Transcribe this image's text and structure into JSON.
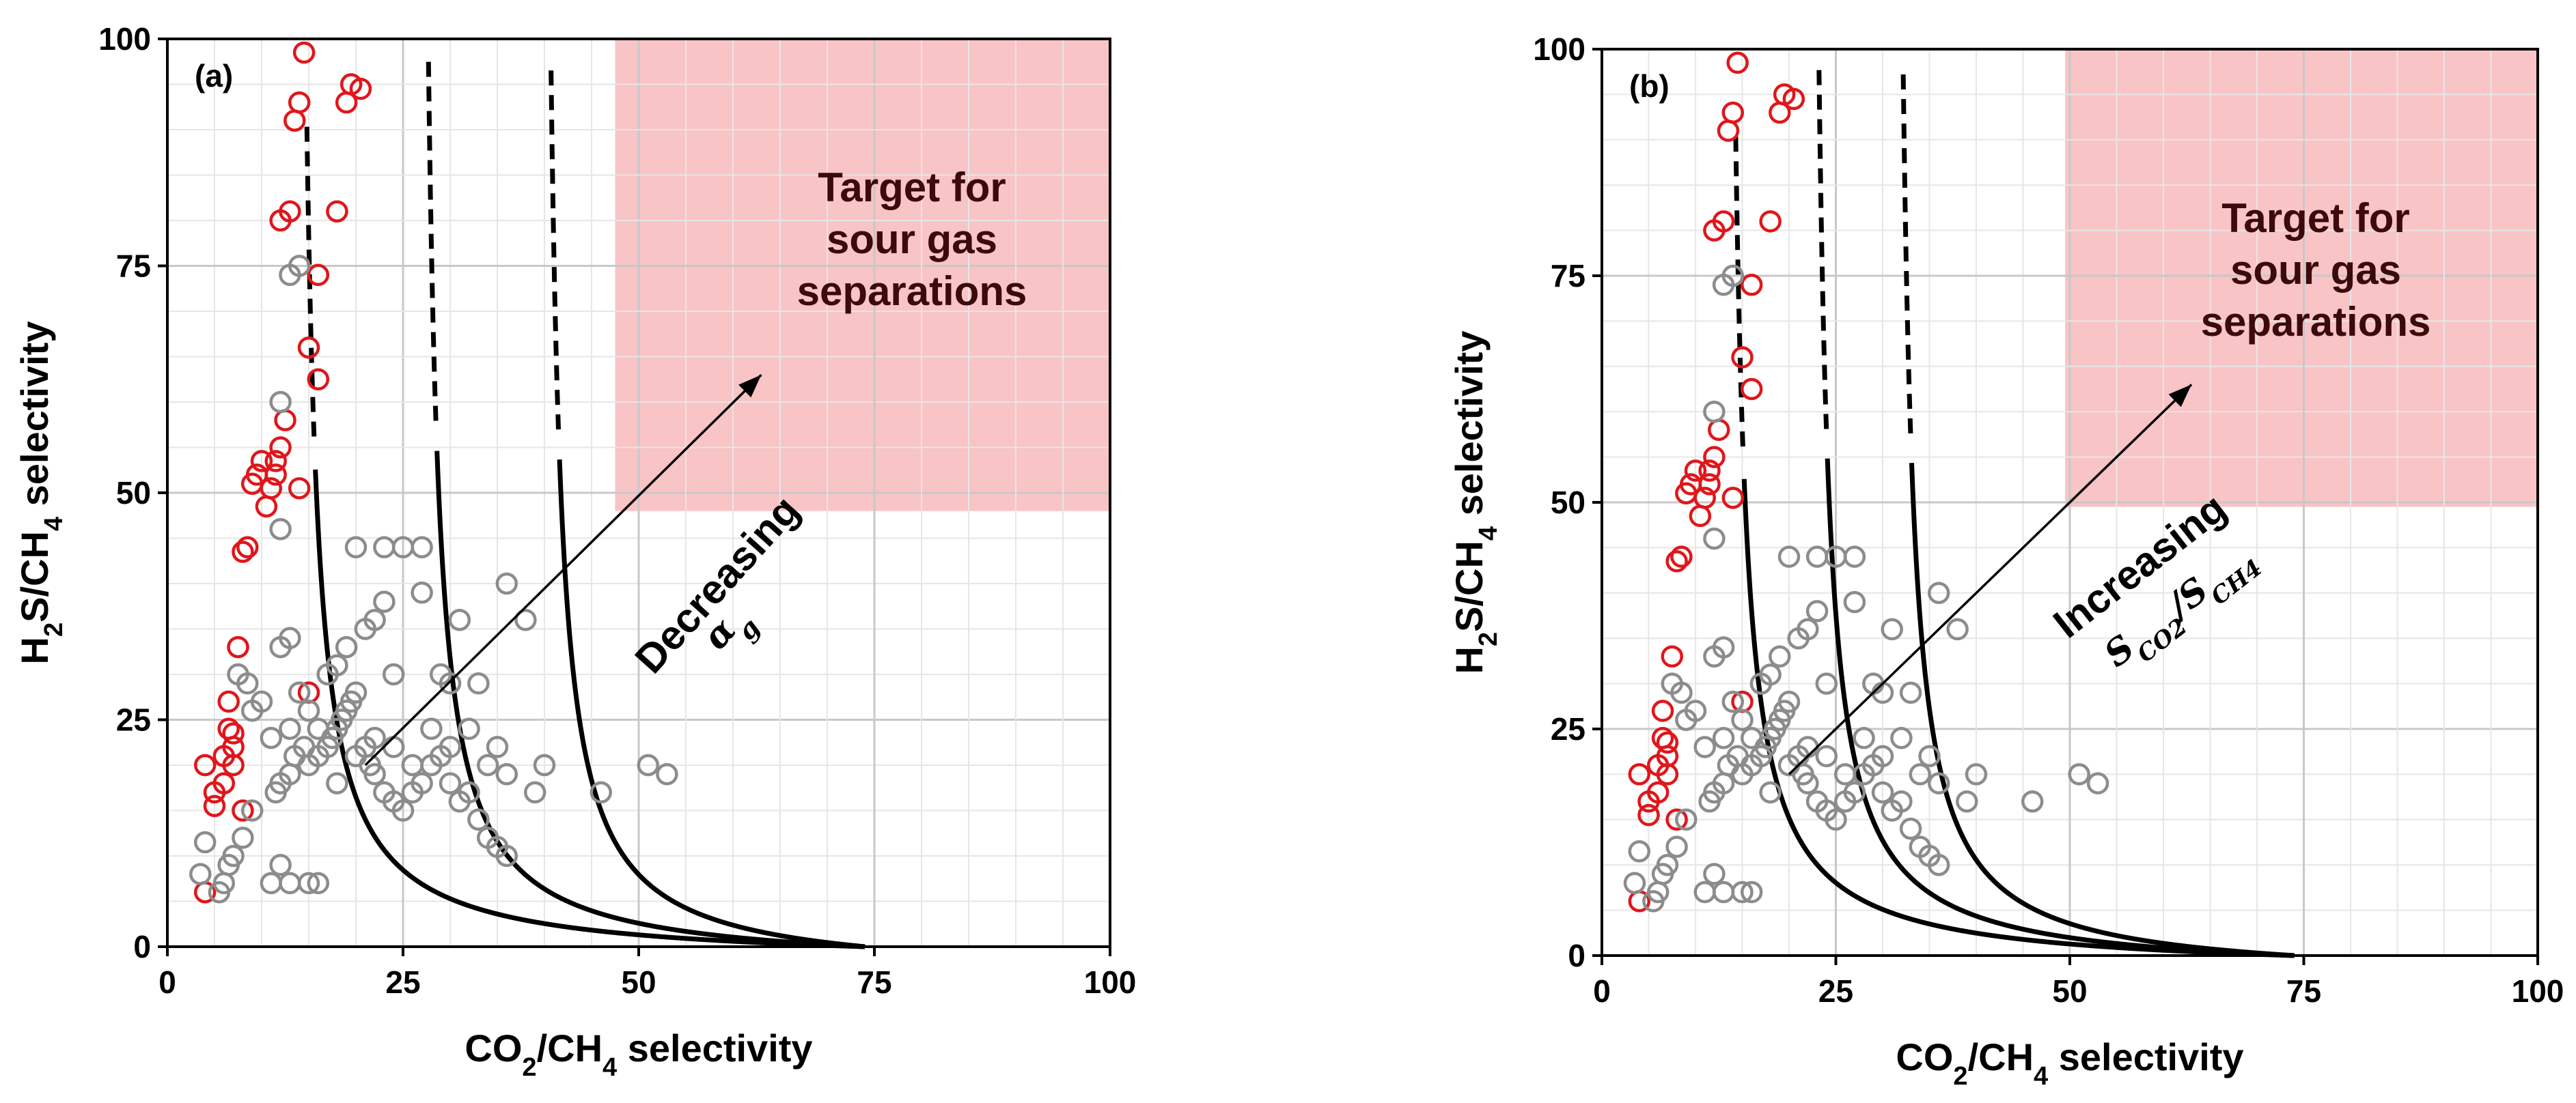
{
  "chart_data": [
    {
      "type": "scatter",
      "panel": "(a)",
      "xlabel": "CO2/CH4 selectivity",
      "ylabel": "H2S/CH4 selectivity",
      "xlim": [
        0,
        100
      ],
      "ylim": [
        0,
        100
      ],
      "xticks": [
        "0",
        "25",
        "50",
        "75",
        "100"
      ],
      "yticks": [
        "0",
        "25",
        "50",
        "75",
        "100"
      ],
      "grid": true,
      "target_region": {
        "label_lines": [
          "Target for",
          "sour gas",
          "separations"
        ],
        "x": [
          47.5,
          100
        ],
        "y": [
          48,
          100
        ],
        "color": "#f9c4c6"
      },
      "arrow_label_main": "Decreasing",
      "arrow_label_math": "αg",
      "arrow": {
        "from": [
          21,
          20
        ],
        "to": [
          63,
          63
        ]
      },
      "curves": [
        {
          "asymptote_x": 13.5,
          "solid_from_y": 55
        },
        {
          "asymptote_x": 26.5,
          "solid_from_y": 55
        },
        {
          "asymptote_x": 39.5,
          "solid_from_y": 55
        }
      ],
      "series": [
        {
          "color": "#e0161b",
          "points": [
            [
              4,
              6
            ],
            [
              4,
              20
            ],
            [
              5,
              15.5
            ],
            [
              5,
              17
            ],
            [
              6,
              18
            ],
            [
              6,
              21
            ],
            [
              7,
              20
            ],
            [
              7,
              22
            ],
            [
              7,
              23.5
            ],
            [
              6.5,
              24
            ],
            [
              6.5,
              27
            ],
            [
              8,
              15
            ],
            [
              7.5,
              33
            ],
            [
              8,
              43.5
            ],
            [
              8.5,
              44
            ],
            [
              9,
              51
            ],
            [
              9.5,
              52
            ],
            [
              10,
              53.5
            ],
            [
              10.5,
              48.5
            ],
            [
              11,
              50.5
            ],
            [
              11.5,
              52
            ],
            [
              11.5,
              53.5
            ],
            [
              12,
              55
            ],
            [
              12.5,
              58
            ],
            [
              14,
              50.5
            ],
            [
              12,
              80
            ],
            [
              13,
              81
            ],
            [
              13.5,
              91
            ],
            [
              14,
              93
            ],
            [
              14.5,
              98.5
            ],
            [
              15,
              66
            ],
            [
              16,
              62.5
            ],
            [
              16,
              74
            ],
            [
              18,
              81
            ],
            [
              19,
              93
            ],
            [
              19.5,
              95
            ],
            [
              20.5,
              94.5
            ],
            [
              15,
              28
            ]
          ]
        },
        {
          "color": "#8c8c8c",
          "points": [
            [
              3.5,
              8
            ],
            [
              4,
              11.5
            ],
            [
              5.5,
              6
            ],
            [
              6,
              7
            ],
            [
              6.5,
              9
            ],
            [
              7,
              10
            ],
            [
              8,
              12
            ],
            [
              9,
              15
            ],
            [
              9,
              26
            ],
            [
              10,
              27
            ],
            [
              7.5,
              30
            ],
            [
              8.5,
              29
            ],
            [
              11,
              23
            ],
            [
              11.5,
              17
            ],
            [
              12,
              18
            ],
            [
              13,
              19
            ],
            [
              13.5,
              21
            ],
            [
              14.5,
              22
            ],
            [
              15,
              20
            ],
            [
              16,
              21
            ],
            [
              17,
              22
            ],
            [
              17.5,
              23
            ],
            [
              18,
              24
            ],
            [
              18.5,
              25
            ],
            [
              19,
              26
            ],
            [
              19.5,
              27
            ],
            [
              20,
              28
            ],
            [
              21,
              22
            ],
            [
              21.5,
              20
            ],
            [
              22,
              19
            ],
            [
              23,
              17
            ],
            [
              24,
              16
            ],
            [
              25,
              15
            ],
            [
              26,
              17
            ],
            [
              27,
              18
            ],
            [
              28,
              20
            ],
            [
              29,
              21
            ],
            [
              30,
              22
            ],
            [
              31,
              16
            ],
            [
              32,
              17
            ],
            [
              33,
              14
            ],
            [
              34,
              12
            ],
            [
              35,
              11
            ],
            [
              36,
              10
            ],
            [
              11,
              7
            ],
            [
              12,
              9
            ],
            [
              13,
              7
            ],
            [
              15,
              7
            ],
            [
              16,
              7
            ],
            [
              12,
              60
            ],
            [
              12,
              46
            ],
            [
              14,
              75
            ],
            [
              13,
              74
            ],
            [
              17,
              30
            ],
            [
              18,
              31
            ],
            [
              19,
              33
            ],
            [
              21,
              35
            ],
            [
              22,
              36
            ],
            [
              23,
              38
            ],
            [
              24,
              30
            ],
            [
              25,
              44
            ],
            [
              27,
              39
            ],
            [
              29,
              30
            ],
            [
              30,
              29
            ],
            [
              31,
              36
            ],
            [
              33,
              29
            ],
            [
              36,
              40
            ],
            [
              38,
              36
            ],
            [
              39,
              17
            ],
            [
              40,
              20
            ],
            [
              46,
              17
            ],
            [
              51,
              20
            ],
            [
              53,
              19
            ],
            [
              20,
              44
            ],
            [
              23,
              44
            ],
            [
              27,
              44
            ],
            [
              30,
              18
            ],
            [
              32,
              24
            ],
            [
              34,
              20
            ],
            [
              35,
              22
            ],
            [
              36,
              19
            ],
            [
              18,
              18
            ],
            [
              20,
              21
            ],
            [
              22,
              23
            ],
            [
              24,
              22
            ],
            [
              26,
              20
            ],
            [
              28,
              24
            ],
            [
              15,
              26
            ],
            [
              16,
              24
            ],
            [
              14,
              28
            ],
            [
              13,
              24
            ],
            [
              12,
              33
            ],
            [
              13,
              34
            ]
          ]
        }
      ]
    },
    {
      "type": "scatter",
      "panel": "(b)",
      "xlabel": "CO2/CH4 selectivity",
      "ylabel": "H2S/CH4 selectivity",
      "xlim": [
        0,
        100
      ],
      "ylim": [
        0,
        100
      ],
      "xticks": [
        "0",
        "25",
        "50",
        "75",
        "100"
      ],
      "yticks": [
        "0",
        "25",
        "50",
        "75",
        "100"
      ],
      "grid": true,
      "target_region": {
        "label_lines": [
          "Target for",
          "sour gas",
          "separations"
        ],
        "x": [
          49.5,
          100
        ],
        "y": [
          49.5,
          100
        ],
        "color": "#f9c4c6"
      },
      "arrow_label_main": "Increasing",
      "arrow_label_math": "SCO2/SCH4",
      "arrow": {
        "from": [
          20,
          20
        ],
        "to": [
          63,
          63
        ]
      },
      "curves": [
        {
          "asymptote_x": 13,
          "solid_from_y": 55
        },
        {
          "asymptote_x": 22,
          "solid_from_y": 55
        },
        {
          "asymptote_x": 31,
          "solid_from_y": 55
        }
      ],
      "series": [
        {
          "color": "#e0161b",
          "points": [
            [
              4,
              6
            ],
            [
              4,
              20
            ],
            [
              5,
              15.5
            ],
            [
              5,
              17
            ],
            [
              6,
              18
            ],
            [
              6,
              21
            ],
            [
              7,
              20
            ],
            [
              7,
              22
            ],
            [
              7,
              23.5
            ],
            [
              6.5,
              24
            ],
            [
              6.5,
              27
            ],
            [
              8,
              15
            ],
            [
              7.5,
              33
            ],
            [
              8,
              43.5
            ],
            [
              8.5,
              44
            ],
            [
              9,
              51
            ],
            [
              9.5,
              52
            ],
            [
              10,
              53.5
            ],
            [
              10.5,
              48.5
            ],
            [
              11,
              50.5
            ],
            [
              11.5,
              52
            ],
            [
              11.5,
              53.5
            ],
            [
              12,
              55
            ],
            [
              12.5,
              58
            ],
            [
              14,
              50.5
            ],
            [
              12,
              80
            ],
            [
              13,
              81
            ],
            [
              13.5,
              91
            ],
            [
              14,
              93
            ],
            [
              14.5,
              98.5
            ],
            [
              15,
              66
            ],
            [
              16,
              62.5
            ],
            [
              16,
              74
            ],
            [
              18,
              81
            ],
            [
              19,
              93
            ],
            [
              19.5,
              95
            ],
            [
              20.5,
              94.5
            ],
            [
              15,
              28
            ]
          ]
        },
        {
          "color": "#8c8c8c",
          "points": [
            [
              3.5,
              8
            ],
            [
              4,
              11.5
            ],
            [
              5.5,
              6
            ],
            [
              6,
              7
            ],
            [
              6.5,
              9
            ],
            [
              7,
              10
            ],
            [
              8,
              12
            ],
            [
              9,
              15
            ],
            [
              9,
              26
            ],
            [
              10,
              27
            ],
            [
              7.5,
              30
            ],
            [
              8.5,
              29
            ],
            [
              11,
              23
            ],
            [
              11.5,
              17
            ],
            [
              12,
              18
            ],
            [
              13,
              19
            ],
            [
              13.5,
              21
            ],
            [
              14.5,
              22
            ],
            [
              15,
              20
            ],
            [
              16,
              21
            ],
            [
              17,
              22
            ],
            [
              17.5,
              23
            ],
            [
              18,
              24
            ],
            [
              18.5,
              25
            ],
            [
              19,
              26
            ],
            [
              19.5,
              27
            ],
            [
              20,
              28
            ],
            [
              21,
              22
            ],
            [
              21.5,
              20
            ],
            [
              22,
              19
            ],
            [
              23,
              17
            ],
            [
              24,
              16
            ],
            [
              25,
              15
            ],
            [
              26,
              17
            ],
            [
              27,
              18
            ],
            [
              28,
              20
            ],
            [
              29,
              21
            ],
            [
              30,
              22
            ],
            [
              31,
              16
            ],
            [
              32,
              17
            ],
            [
              33,
              14
            ],
            [
              34,
              12
            ],
            [
              35,
              11
            ],
            [
              36,
              10
            ],
            [
              11,
              7
            ],
            [
              12,
              9
            ],
            [
              13,
              7
            ],
            [
              15,
              7
            ],
            [
              16,
              7
            ],
            [
              12,
              60
            ],
            [
              12,
              46
            ],
            [
              14,
              75
            ],
            [
              13,
              74
            ],
            [
              17,
              30
            ],
            [
              18,
              31
            ],
            [
              19,
              33
            ],
            [
              21,
              35
            ],
            [
              22,
              36
            ],
            [
              23,
              38
            ],
            [
              24,
              30
            ],
            [
              25,
              44
            ],
            [
              27,
              39
            ],
            [
              29,
              30
            ],
            [
              30,
              29
            ],
            [
              31,
              36
            ],
            [
              33,
              29
            ],
            [
              36,
              40
            ],
            [
              38,
              36
            ],
            [
              39,
              17
            ],
            [
              40,
              20
            ],
            [
              46,
              17
            ],
            [
              51,
              20
            ],
            [
              53,
              19
            ],
            [
              20,
              44
            ],
            [
              23,
              44
            ],
            [
              27,
              44
            ],
            [
              30,
              18
            ],
            [
              32,
              24
            ],
            [
              34,
              20
            ],
            [
              35,
              22
            ],
            [
              36,
              19
            ],
            [
              18,
              18
            ],
            [
              20,
              21
            ],
            [
              22,
              23
            ],
            [
              24,
              22
            ],
            [
              26,
              20
            ],
            [
              28,
              24
            ],
            [
              15,
              26
            ],
            [
              16,
              24
            ],
            [
              14,
              28
            ],
            [
              13,
              24
            ],
            [
              12,
              33
            ],
            [
              13,
              34
            ]
          ]
        }
      ]
    }
  ]
}
